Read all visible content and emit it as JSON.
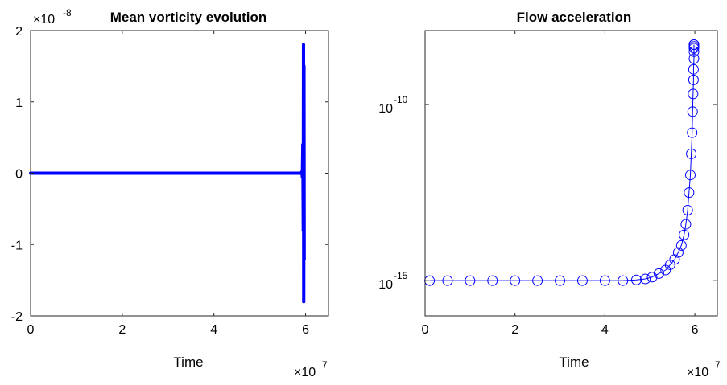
{
  "chart_data": [
    {
      "type": "line",
      "title": "Mean vorticity evolution",
      "xlabel": "Time",
      "ylabel": "",
      "x_multiplier": "×10",
      "x_multiplier_exp": "7",
      "y_multiplier": "×10",
      "y_multiplier_exp": "-8",
      "xlim": [
        0,
        6.5
      ],
      "ylim": [
        -2,
        2
      ],
      "x_ticks": [
        0,
        2,
        4,
        6
      ],
      "x_tick_labels": [
        "0",
        "2",
        "4",
        "6"
      ],
      "y_ticks": [
        -2,
        -1,
        0,
        1,
        2
      ],
      "y_tick_labels": [
        "-2",
        "-1",
        "0",
        "1",
        "2"
      ],
      "grid": false,
      "color": "#0000ff",
      "series": [
        {
          "x": [
            0,
            1,
            2,
            3,
            4,
            5,
            5.9,
            5.92,
            5.93,
            5.94,
            5.95,
            5.955,
            5.96,
            5.965,
            5.97
          ],
          "y": [
            0,
            0,
            0,
            0,
            0,
            0,
            0,
            0.02,
            -0.05,
            0.4,
            -0.8,
            1.8,
            -1.8,
            1.5,
            -1.2
          ]
        }
      ]
    },
    {
      "type": "scatter",
      "title": "Flow acceleration",
      "xlabel": "Time",
      "ylabel": "",
      "x_multiplier": "×10",
      "x_multiplier_exp": "7",
      "xlim": [
        0,
        6.5
      ],
      "yscale": "log",
      "ylim_exp": [
        -16.0,
        -7.9
      ],
      "y_ticks_exp": [
        -15,
        -10
      ],
      "y_tick_base": "10",
      "y_tick_exps": [
        "-15",
        "-10"
      ],
      "grid": false,
      "color": "#0000ff",
      "marker": "circle-open",
      "series": [
        {
          "x": [
            0.1,
            0.5,
            1.0,
            1.5,
            2.0,
            2.5,
            3.0,
            3.5,
            4.0,
            4.4,
            4.7,
            4.9,
            5.05,
            5.2,
            5.35,
            5.45,
            5.55,
            5.63,
            5.7,
            5.76,
            5.8,
            5.84,
            5.87,
            5.9,
            5.92,
            5.94,
            5.95,
            5.96,
            5.97,
            5.97,
            5.98,
            5.98,
            5.98,
            5.98,
            5.98,
            5.98
          ],
          "y_exp": [
            -15.0,
            -15.0,
            -15.0,
            -15.0,
            -15.0,
            -15.0,
            -15.0,
            -15.0,
            -15.0,
            -15.0,
            -14.98,
            -14.95,
            -14.9,
            -14.8,
            -14.7,
            -14.55,
            -14.4,
            -14.2,
            -14.0,
            -13.7,
            -13.4,
            -13.0,
            -12.5,
            -12.0,
            -11.4,
            -10.8,
            -10.2,
            -9.7,
            -9.3,
            -9.0,
            -8.7,
            -8.5,
            -8.4,
            -8.35,
            -8.3,
            -8.3
          ]
        }
      ]
    }
  ]
}
